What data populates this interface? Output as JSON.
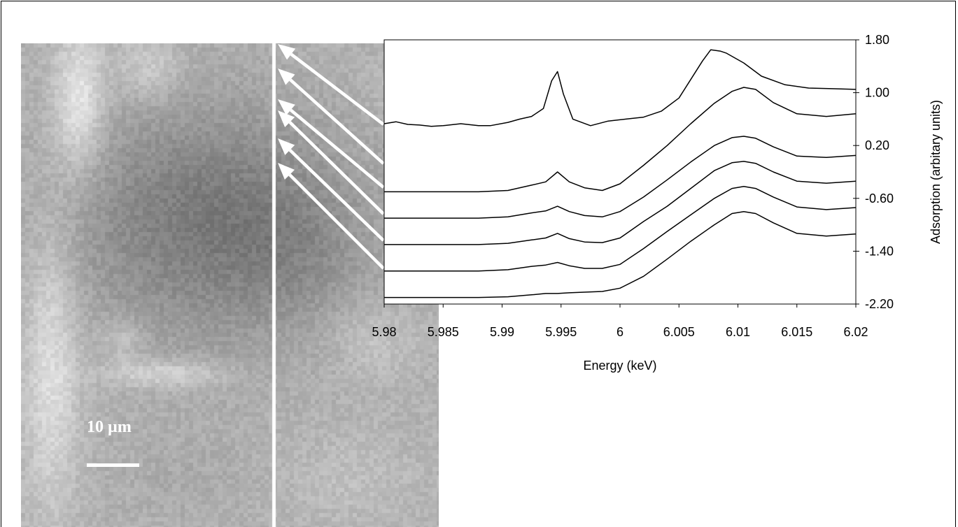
{
  "micrograph": {
    "scale_label": "10 µm",
    "colors": {
      "light": "#e8e8e8",
      "mid": "#b4b4b4",
      "dark": "#8c8c8c",
      "darkest": "#747474"
    }
  },
  "chart_data": {
    "type": "line",
    "title": "",
    "xlabel": "Energy (keV)",
    "ylabel": "Adsorption (arbitary units)",
    "xlim": [
      5.98,
      6.02
    ],
    "ylim": [
      -2.2,
      1.8
    ],
    "x_ticks": [
      5.98,
      5.985,
      5.99,
      5.995,
      6,
      6.005,
      6.01,
      6.015,
      6.02
    ],
    "x_tick_labels": [
      "5.98",
      "5.985",
      "5.99",
      "5.995",
      "6",
      "6.005",
      "6.01",
      "6.015",
      "6.02"
    ],
    "y_ticks": [
      1.8,
      1.0,
      0.2,
      -0.6,
      -1.4,
      -2.2
    ],
    "y_tick_labels": [
      "1.80",
      "1.00",
      "0.20",
      "-0.60",
      "-1.40",
      "-2.20"
    ],
    "y_axis_side": "right",
    "line_color": "#000000",
    "series": [
      {
        "x": [
          5.98,
          5.981,
          5.982,
          5.983,
          5.984,
          5.985,
          5.9865,
          5.988,
          5.989,
          5.9905,
          5.9915,
          5.9925,
          5.9935,
          5.9942,
          5.9947,
          5.9952,
          5.996,
          5.9975,
          5.999,
          6.0005,
          6.002,
          6.0035,
          6.005,
          6.006,
          6.007,
          6.0077,
          6.0085,
          6.009,
          6.0105,
          6.012,
          6.014,
          6.016,
          6.018,
          6.02
        ],
        "values": [
          0.53,
          0.56,
          0.52,
          0.51,
          0.49,
          0.5,
          0.53,
          0.5,
          0.5,
          0.55,
          0.6,
          0.64,
          0.76,
          1.18,
          1.32,
          0.98,
          0.6,
          0.5,
          0.57,
          0.6,
          0.63,
          0.72,
          0.92,
          1.2,
          1.48,
          1.65,
          1.63,
          1.6,
          1.45,
          1.25,
          1.12,
          1.07,
          1.06,
          1.05
        ]
      },
      {
        "x": [
          5.98,
          5.984,
          5.988,
          5.9905,
          5.9925,
          5.9937,
          5.9947,
          5.9957,
          5.997,
          5.9985,
          6.0,
          6.002,
          6.004,
          6.006,
          6.008,
          6.0095,
          6.0105,
          6.0115,
          6.013,
          6.015,
          6.0175,
          6.02
        ],
        "values": [
          -0.5,
          -0.5,
          -0.5,
          -0.48,
          -0.4,
          -0.35,
          -0.2,
          -0.35,
          -0.44,
          -0.48,
          -0.38,
          -0.1,
          0.2,
          0.53,
          0.84,
          1.02,
          1.08,
          1.05,
          0.85,
          0.68,
          0.64,
          0.68
        ]
      },
      {
        "x": [
          5.98,
          5.984,
          5.988,
          5.9905,
          5.9925,
          5.9937,
          5.9947,
          5.9957,
          5.997,
          5.9985,
          6.0,
          6.002,
          6.004,
          6.006,
          6.008,
          6.0095,
          6.0105,
          6.0115,
          6.013,
          6.015,
          6.0175,
          6.02
        ],
        "values": [
          -0.9,
          -0.9,
          -0.9,
          -0.88,
          -0.82,
          -0.79,
          -0.72,
          -0.8,
          -0.86,
          -0.88,
          -0.8,
          -0.58,
          -0.32,
          -0.05,
          0.2,
          0.32,
          0.34,
          0.31,
          0.18,
          0.04,
          0.02,
          0.05
        ]
      },
      {
        "x": [
          5.98,
          5.984,
          5.988,
          5.9905,
          5.9925,
          5.9937,
          5.9947,
          5.9957,
          5.997,
          5.9985,
          6.0,
          6.002,
          6.004,
          6.006,
          6.008,
          6.0095,
          6.0105,
          6.0115,
          6.013,
          6.015,
          6.0175,
          6.02
        ],
        "values": [
          -1.3,
          -1.3,
          -1.3,
          -1.28,
          -1.23,
          -1.2,
          -1.13,
          -1.21,
          -1.26,
          -1.27,
          -1.2,
          -0.95,
          -0.72,
          -0.45,
          -0.18,
          -0.06,
          -0.04,
          -0.07,
          -0.2,
          -0.34,
          -0.37,
          -0.34
        ]
      },
      {
        "x": [
          5.98,
          5.984,
          5.988,
          5.9905,
          5.9925,
          5.9937,
          5.9947,
          5.9957,
          5.997,
          5.9985,
          6.0,
          6.002,
          6.004,
          6.006,
          6.008,
          6.0095,
          6.0105,
          6.0115,
          6.013,
          6.015,
          6.0175,
          6.02
        ],
        "values": [
          -1.7,
          -1.7,
          -1.7,
          -1.68,
          -1.63,
          -1.61,
          -1.57,
          -1.62,
          -1.66,
          -1.66,
          -1.6,
          -1.36,
          -1.1,
          -0.85,
          -0.6,
          -0.45,
          -0.42,
          -0.45,
          -0.58,
          -0.73,
          -0.77,
          -0.74
        ]
      },
      {
        "x": [
          5.98,
          5.984,
          5.988,
          5.9905,
          5.9925,
          5.9937,
          5.9947,
          5.9957,
          5.997,
          5.9985,
          6.0,
          6.002,
          6.004,
          6.006,
          6.008,
          6.0095,
          6.0105,
          6.0115,
          6.013,
          6.015,
          6.0175,
          6.02
        ],
        "values": [
          -2.1,
          -2.1,
          -2.1,
          -2.09,
          -2.06,
          -2.04,
          -2.04,
          -2.03,
          -2.02,
          -2.01,
          -1.96,
          -1.78,
          -1.52,
          -1.25,
          -1.0,
          -0.83,
          -0.8,
          -0.83,
          -0.97,
          -1.13,
          -1.17,
          -1.14
        ]
      }
    ]
  }
}
